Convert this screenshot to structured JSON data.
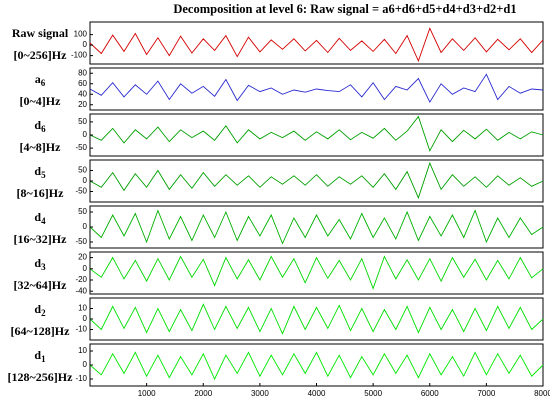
{
  "title": "Decomposition at level 6: Raw signal = a6+d6+d5+d4+d3+d2+d1",
  "chart_data": [
    {
      "type": "line",
      "label": "Raw signal",
      "band": "[0~256]Hz",
      "x": [
        0,
        200,
        400,
        600,
        800,
        1000,
        1200,
        1400,
        1600,
        1800,
        2000,
        2200,
        2400,
        2600,
        2800,
        3000,
        3200,
        3400,
        3600,
        3800,
        4000,
        4200,
        4400,
        4600,
        4800,
        5000,
        5200,
        5400,
        5600,
        5800,
        6000,
        6200,
        6400,
        6600,
        6800,
        7000,
        7200,
        7400,
        7600,
        7800,
        8000
      ],
      "series": [
        {
          "color": "#d40000",
          "values": [
            20,
            -80,
            95,
            -60,
            110,
            -90,
            70,
            -100,
            85,
            -75,
            60,
            -50,
            90,
            -110,
            75,
            -65,
            50,
            -40,
            60,
            -55,
            45,
            -70,
            65,
            -50,
            40,
            -60,
            55,
            -80,
            90,
            -150,
            160,
            -70,
            60,
            -50,
            70,
            -65,
            55,
            -45,
            60,
            -70,
            50
          ]
        }
      ],
      "xlim": [
        0,
        8000
      ],
      "ylim": [
        -180,
        220
      ],
      "yticks": [
        -100,
        0,
        100
      ]
    },
    {
      "type": "line",
      "label": "a",
      "subscript": "6",
      "band": "[0~4]Hz",
      "x": [
        0,
        200,
        400,
        600,
        800,
        1000,
        1200,
        1400,
        1600,
        1800,
        2000,
        2200,
        2400,
        2600,
        2800,
        3000,
        3200,
        3400,
        3600,
        3800,
        4000,
        4200,
        4400,
        4600,
        4800,
        5000,
        5200,
        5400,
        5600,
        5800,
        6000,
        6200,
        6400,
        6600,
        6800,
        7000,
        7200,
        7400,
        7600,
        7800,
        8000
      ],
      "series": [
        {
          "color": "#2a2ad0",
          "values": [
            50,
            38,
            62,
            35,
            58,
            40,
            65,
            30,
            60,
            42,
            55,
            36,
            68,
            28,
            57,
            45,
            52,
            40,
            48,
            44,
            50,
            47,
            45,
            58,
            35,
            62,
            30,
            55,
            48,
            70,
            25,
            60,
            40,
            52,
            45,
            78,
            30,
            55,
            42,
            50,
            48
          ]
        }
      ],
      "xlim": [
        0,
        8000
      ],
      "ylim": [
        10,
        90
      ],
      "yticks": [
        20,
        40,
        60,
        80
      ]
    },
    {
      "type": "line",
      "label": "d",
      "subscript": "6",
      "band": "[4~8]Hz",
      "x": [
        0,
        200,
        400,
        600,
        800,
        1000,
        1200,
        1400,
        1600,
        1800,
        2000,
        2200,
        2400,
        2600,
        2800,
        3000,
        3200,
        3400,
        3600,
        3800,
        4000,
        4200,
        4400,
        4600,
        4800,
        5000,
        5200,
        5400,
        5600,
        5800,
        6000,
        6200,
        6400,
        6600,
        6800,
        7000,
        7200,
        7400,
        7600,
        7800,
        8000
      ],
      "series": [
        {
          "color": "#00a000",
          "values": [
            0,
            -20,
            25,
            -30,
            20,
            -15,
            30,
            -25,
            20,
            -10,
            15,
            -20,
            35,
            -30,
            20,
            -15,
            10,
            -10,
            15,
            -20,
            12,
            -15,
            20,
            -18,
            10,
            -12,
            25,
            -20,
            15,
            70,
            -60,
            20,
            -25,
            18,
            -15,
            22,
            -20,
            10,
            -15,
            12,
            0
          ]
        }
      ],
      "xlim": [
        0,
        8000
      ],
      "ylim": [
        -80,
        80
      ],
      "yticks": [
        -50,
        0,
        50
      ]
    },
    {
      "type": "line",
      "label": "d",
      "subscript": "5",
      "band": "[8~16]Hz",
      "x": [
        0,
        200,
        400,
        600,
        800,
        1000,
        1200,
        1400,
        1600,
        1800,
        2000,
        2200,
        2400,
        2600,
        2800,
        3000,
        3200,
        3400,
        3600,
        3800,
        4000,
        4200,
        4400,
        4600,
        4800,
        5000,
        5200,
        5400,
        5600,
        5800,
        6000,
        6200,
        6400,
        6600,
        6800,
        7000,
        7200,
        7400,
        7600,
        7800,
        8000
      ],
      "series": [
        {
          "color": "#00a000",
          "values": [
            0,
            -30,
            40,
            -45,
            35,
            -30,
            50,
            -40,
            30,
            -35,
            40,
            -25,
            30,
            -20,
            25,
            -30,
            20,
            -15,
            25,
            -20,
            30,
            -25,
            20,
            -15,
            25,
            -30,
            35,
            -40,
            45,
            -80,
            85,
            -40,
            30,
            -25,
            20,
            -30,
            25,
            -20,
            15,
            -25,
            0
          ]
        }
      ],
      "xlim": [
        0,
        8000
      ],
      "ylim": [
        -100,
        100
      ],
      "yticks": [
        -50,
        0,
        50
      ]
    },
    {
      "type": "line",
      "label": "d",
      "subscript": "4",
      "band": "[16~32]Hz",
      "x": [
        0,
        200,
        400,
        600,
        800,
        1000,
        1200,
        1400,
        1600,
        1800,
        2000,
        2200,
        2400,
        2600,
        2800,
        3000,
        3200,
        3400,
        3600,
        3800,
        4000,
        4200,
        4400,
        4600,
        4800,
        5000,
        5200,
        5400,
        5600,
        5800,
        6000,
        6200,
        6400,
        6600,
        6800,
        7000,
        7200,
        7400,
        7600,
        7800,
        8000
      ],
      "series": [
        {
          "color": "#00b000",
          "values": [
            0,
            -35,
            40,
            -30,
            45,
            -50,
            55,
            -40,
            35,
            -45,
            40,
            -35,
            50,
            -45,
            35,
            -30,
            40,
            -55,
            30,
            -35,
            40,
            -30,
            25,
            -40,
            45,
            -35,
            30,
            -40,
            50,
            -45,
            35,
            -30,
            40,
            -35,
            55,
            -50,
            30,
            -35,
            30,
            -25,
            0
          ]
        }
      ],
      "xlim": [
        0,
        8000
      ],
      "ylim": [
        -70,
        70
      ],
      "yticks": [
        -50,
        0,
        50
      ]
    },
    {
      "type": "line",
      "label": "d",
      "subscript": "3",
      "band": "[32~64]Hz",
      "x": [
        0,
        200,
        400,
        600,
        800,
        1000,
        1200,
        1400,
        1600,
        1800,
        2000,
        2200,
        2400,
        2600,
        2800,
        3000,
        3200,
        3400,
        3600,
        3800,
        4000,
        4200,
        4400,
        4600,
        4800,
        5000,
        5200,
        5400,
        5600,
        5800,
        6000,
        6200,
        6400,
        6600,
        6800,
        7000,
        7200,
        7400,
        7600,
        7800,
        8000
      ],
      "series": [
        {
          "color": "#00d800",
          "values": [
            0,
            -15,
            20,
            -18,
            15,
            -22,
            18,
            -20,
            22,
            -15,
            17,
            -30,
            20,
            -18,
            16,
            -20,
            22,
            -15,
            18,
            -25,
            20,
            -17,
            15,
            -20,
            18,
            -35,
            22,
            -18,
            16,
            -20,
            18,
            -22,
            20,
            -15,
            17,
            -20,
            15,
            -18,
            20,
            -16,
            0
          ]
        }
      ],
      "xlim": [
        0,
        8000
      ],
      "ylim": [
        -45,
        30
      ],
      "yticks": [
        -40,
        -20,
        0,
        20
      ]
    },
    {
      "type": "line",
      "label": "d",
      "subscript": "2",
      "band": "[64~128]Hz",
      "x": [
        0,
        200,
        400,
        600,
        800,
        1000,
        1200,
        1400,
        1600,
        1800,
        2000,
        2200,
        2400,
        2600,
        2800,
        3000,
        3200,
        3400,
        3600,
        3800,
        4000,
        4200,
        4400,
        4600,
        4800,
        5000,
        5200,
        5400,
        5600,
        5800,
        6000,
        6200,
        6400,
        6600,
        6800,
        7000,
        7200,
        7400,
        7600,
        7800,
        8000
      ],
      "series": [
        {
          "color": "#00e000",
          "values": [
            0,
            -10,
            12,
            -9,
            11,
            -13,
            10,
            -12,
            9,
            -11,
            14,
            -10,
            12,
            -9,
            11,
            -12,
            10,
            -14,
            12,
            -10,
            11,
            -9,
            13,
            -11,
            10,
            -12,
            9,
            -10,
            12,
            -13,
            11,
            -10,
            9,
            -12,
            10,
            -11,
            12,
            -9,
            11,
            -10,
            0
          ]
        }
      ],
      "xlim": [
        0,
        8000
      ],
      "ylim": [
        -20,
        20
      ],
      "yticks": [
        -10,
        0,
        10
      ]
    },
    {
      "type": "line",
      "label": "d",
      "subscript": "1",
      "band": "[128~256]Hz",
      "x": [
        0,
        200,
        400,
        600,
        800,
        1000,
        1200,
        1400,
        1600,
        1800,
        2000,
        2200,
        2400,
        2600,
        2800,
        3000,
        3200,
        3400,
        3600,
        3800,
        4000,
        4200,
        4400,
        4600,
        4800,
        5000,
        5200,
        5400,
        5600,
        5800,
        6000,
        6200,
        6400,
        6600,
        6800,
        7000,
        7200,
        7400,
        7600,
        7800,
        8000
      ],
      "series": [
        {
          "color": "#00e800",
          "values": [
            0,
            -7,
            8,
            -6,
            9,
            -8,
            7,
            -9,
            6,
            -7,
            8,
            -10,
            7,
            -6,
            9,
            -8,
            7,
            -7,
            8,
            -6,
            9,
            -8,
            7,
            -9,
            6,
            -7,
            8,
            -6,
            7,
            -9,
            8,
            -7,
            6,
            -8,
            9,
            -7,
            8,
            -6,
            7,
            -8,
            0
          ]
        }
      ],
      "xlim": [
        0,
        8000
      ],
      "ylim": [
        -15,
        15
      ],
      "yticks": [
        -10,
        0,
        10
      ],
      "xticks": [
        1000,
        2000,
        3000,
        4000,
        5000,
        6000,
        7000,
        8000
      ]
    }
  ]
}
